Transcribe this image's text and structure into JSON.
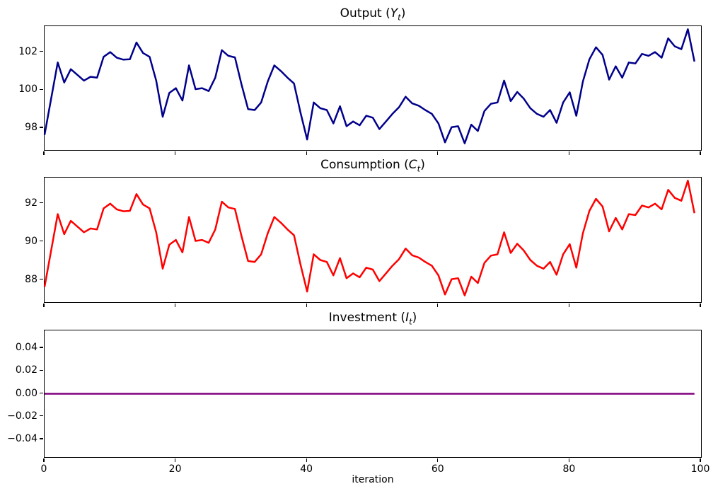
{
  "figure": {
    "background": "#ffffff",
    "xlabel": "iteration"
  },
  "chart_data": [
    {
      "type": "line",
      "series_name": "output",
      "title_plain": "Output (Y_t)",
      "title_parts": {
        "pre": "Output (",
        "var": "Y",
        "sub": "t",
        "post": ")"
      },
      "color": "#00008b",
      "line_width": 2.5,
      "grid": false,
      "legend": "none",
      "xlim": [
        0,
        100
      ],
      "ylim": [
        96.85,
        103.36
      ],
      "x_start": 0,
      "x_step": 1,
      "yticks": [
        {
          "v": 102,
          "label": "102"
        },
        {
          "v": 100,
          "label": "100"
        },
        {
          "v": 98,
          "label": "98"
        }
      ],
      "xticks": [
        {
          "v": 0,
          "label": "0"
        },
        {
          "v": 20,
          "label": "20"
        },
        {
          "v": 40,
          "label": "40"
        },
        {
          "v": 60,
          "label": "60"
        },
        {
          "v": 80,
          "label": "80"
        },
        {
          "v": 100,
          "label": "100"
        }
      ],
      "show_xtick_labels": false,
      "values": [
        97.65,
        99.55,
        101.45,
        100.4,
        101.1,
        100.8,
        100.5,
        100.7,
        100.65,
        101.75,
        102.0,
        101.7,
        101.6,
        101.62,
        102.5,
        101.95,
        101.75,
        100.5,
        98.6,
        99.85,
        100.1,
        99.45,
        101.3,
        100.05,
        100.1,
        99.95,
        100.65,
        102.1,
        101.8,
        101.72,
        100.3,
        99.0,
        98.95,
        99.35,
        100.45,
        101.3,
        101.0,
        100.65,
        100.35,
        98.8,
        97.4,
        99.35,
        99.05,
        98.95,
        98.25,
        99.15,
        98.1,
        98.35,
        98.15,
        98.65,
        98.55,
        97.95,
        98.35,
        98.75,
        99.1,
        99.65,
        99.3,
        99.18,
        98.95,
        98.75,
        98.25,
        97.25,
        98.05,
        98.1,
        97.2,
        98.18,
        97.85,
        98.9,
        99.28,
        99.35,
        100.5,
        99.42,
        99.9,
        99.55,
        99.05,
        98.75,
        98.6,
        98.95,
        98.28,
        99.35,
        99.88,
        98.65,
        100.45,
        101.62,
        102.25,
        101.85,
        100.55,
        101.25,
        100.65,
        101.45,
        101.4,
        101.9,
        101.8,
        102.0,
        101.7,
        102.72,
        102.3,
        102.15,
        103.2,
        101.5
      ]
    },
    {
      "type": "line",
      "series_name": "consumption",
      "title_plain": "Consumption (C_t)",
      "title_parts": {
        "pre": "Consumption (",
        "var": "C",
        "sub": "t",
        "post": ")"
      },
      "color": "#ff0000",
      "line_width": 2.5,
      "grid": false,
      "legend": "none",
      "xlim": [
        0,
        100
      ],
      "ylim": [
        86.85,
        93.36
      ],
      "x_start": 0,
      "x_step": 1,
      "yticks": [
        {
          "v": 92,
          "label": "92"
        },
        {
          "v": 90,
          "label": "90"
        },
        {
          "v": 88,
          "label": "88"
        }
      ],
      "xticks": [
        {
          "v": 0,
          "label": "0"
        },
        {
          "v": 20,
          "label": "20"
        },
        {
          "v": 40,
          "label": "40"
        },
        {
          "v": 60,
          "label": "60"
        },
        {
          "v": 80,
          "label": "80"
        },
        {
          "v": 100,
          "label": "100"
        }
      ],
      "show_xtick_labels": false,
      "values": [
        87.65,
        89.55,
        91.45,
        90.4,
        91.1,
        90.8,
        90.5,
        90.7,
        90.65,
        91.75,
        92.0,
        91.7,
        91.6,
        91.62,
        92.5,
        91.95,
        91.75,
        90.5,
        88.6,
        89.85,
        90.1,
        89.45,
        91.3,
        90.05,
        90.1,
        89.95,
        90.65,
        92.1,
        91.8,
        91.72,
        90.3,
        89.0,
        88.95,
        89.35,
        90.45,
        91.3,
        91.0,
        90.65,
        90.35,
        88.8,
        87.4,
        89.35,
        89.05,
        88.95,
        88.25,
        89.15,
        88.1,
        88.35,
        88.15,
        88.65,
        88.55,
        87.95,
        88.35,
        88.75,
        89.1,
        89.65,
        89.3,
        89.18,
        88.95,
        88.75,
        88.25,
        87.25,
        88.05,
        88.1,
        87.2,
        88.18,
        87.85,
        88.9,
        89.28,
        89.35,
        90.5,
        89.42,
        89.9,
        89.55,
        89.05,
        88.75,
        88.6,
        88.95,
        88.28,
        89.35,
        89.88,
        88.65,
        90.45,
        91.62,
        92.25,
        91.85,
        90.55,
        91.25,
        90.65,
        91.45,
        91.4,
        91.9,
        91.8,
        92.0,
        91.7,
        92.72,
        92.3,
        92.15,
        93.2,
        91.5
      ]
    },
    {
      "type": "line",
      "series_name": "investment",
      "title_plain": "Investment (I_t)",
      "title_parts": {
        "pre": "Investment (",
        "var": "I",
        "sub": "t",
        "post": ")"
      },
      "color": "#800080",
      "line_width": 2.5,
      "grid": false,
      "legend": "none",
      "xlim": [
        0,
        100
      ],
      "ylim": [
        -0.0555,
        0.0555
      ],
      "x_start": 0,
      "x_step": 1,
      "constant_value": 0.0,
      "n_points": 100,
      "yticks": [
        {
          "v": 0.04,
          "label": "0.04"
        },
        {
          "v": 0.02,
          "label": "0.02"
        },
        {
          "v": 0.0,
          "label": "0.00"
        },
        {
          "v": -0.02,
          "label": "−0.02"
        },
        {
          "v": -0.04,
          "label": "−0.04"
        }
      ],
      "xticks": [
        {
          "v": 0,
          "label": "0"
        },
        {
          "v": 20,
          "label": "20"
        },
        {
          "v": 40,
          "label": "40"
        },
        {
          "v": 60,
          "label": "60"
        },
        {
          "v": 80,
          "label": "80"
        },
        {
          "v": 100,
          "label": "100"
        }
      ],
      "show_xtick_labels": true
    }
  ]
}
